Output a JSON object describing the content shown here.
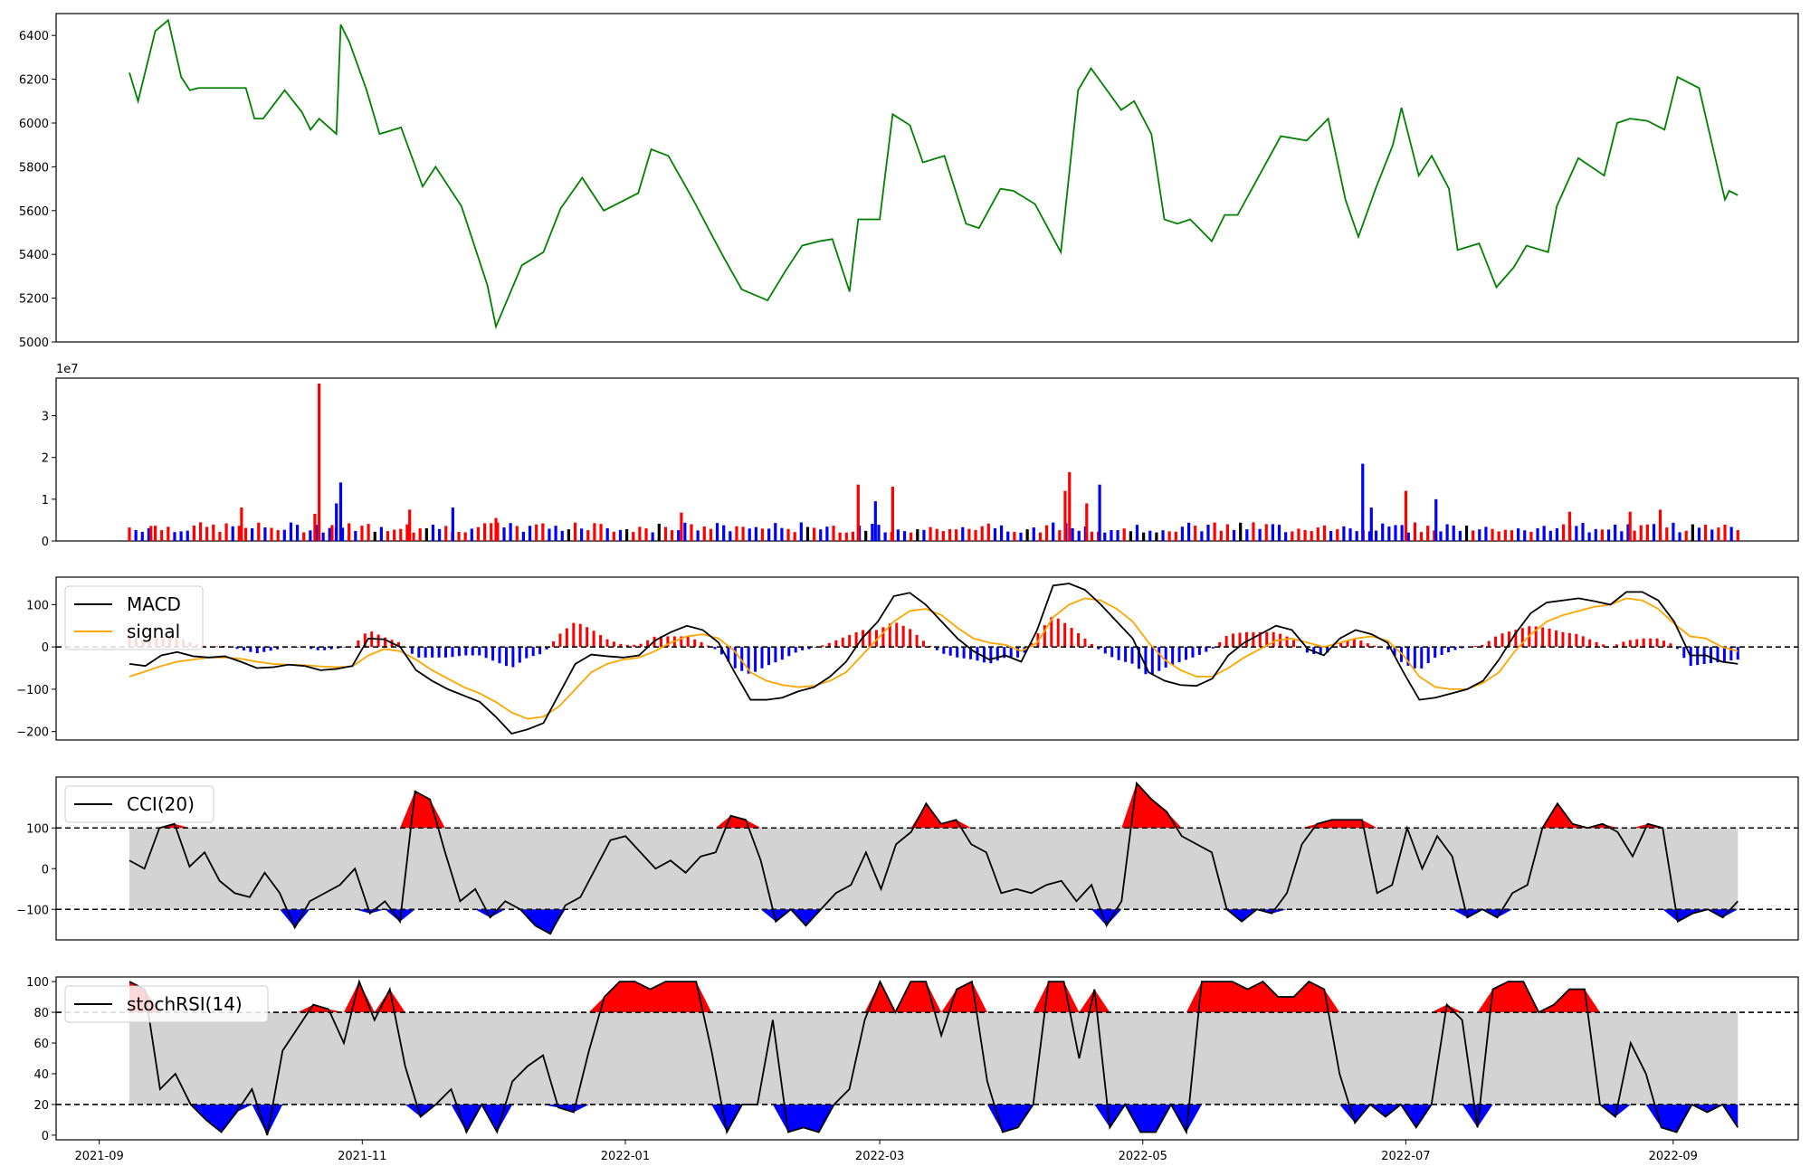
{
  "chart_data": [
    {
      "type": "line",
      "name": "price",
      "color": "#008000",
      "xlim": [
        "2021-08-22",
        "2022-09-30"
      ],
      "ylim": [
        5000,
        6500
      ],
      "yticks": [
        5000,
        5200,
        5400,
        5600,
        5800,
        6000,
        6200,
        6400
      ],
      "ytick_labels": [
        "5000",
        "5200",
        "5400",
        "5600",
        "5800",
        "6000",
        "6200",
        "6400"
      ],
      "x": [
        "2021-09-08",
        "2021-09-10",
        "2021-09-14",
        "2021-09-17",
        "2021-09-20",
        "2021-09-22",
        "2021-09-24",
        "2021-10-05",
        "2021-10-07",
        "2021-10-09",
        "2021-10-14",
        "2021-10-18",
        "2021-10-20",
        "2021-10-22",
        "2021-10-26",
        "2021-10-27",
        "2021-10-29",
        "2021-11-02",
        "2021-11-05",
        "2021-11-10",
        "2021-11-15",
        "2021-11-18",
        "2021-11-24",
        "2021-11-30",
        "2021-12-02",
        "2021-12-08",
        "2021-12-13",
        "2021-12-17",
        "2021-12-22",
        "2021-12-27",
        "2022-01-04",
        "2022-01-07",
        "2022-01-11",
        "2022-01-17",
        "2022-01-21",
        "2022-01-24",
        "2022-01-28",
        "2022-02-03",
        "2022-02-07",
        "2022-02-11",
        "2022-02-15",
        "2022-02-18",
        "2022-02-22",
        "2022-02-24",
        "2022-03-01",
        "2022-03-04",
        "2022-03-08",
        "2022-03-11",
        "2022-03-16",
        "2022-03-21",
        "2022-03-24",
        "2022-03-29",
        "2022-04-01",
        "2022-04-06",
        "2022-04-12",
        "2022-04-16",
        "2022-04-19",
        "2022-04-26",
        "2022-04-29",
        "2022-05-03",
        "2022-05-06",
        "2022-05-09",
        "2022-05-12",
        "2022-05-17",
        "2022-05-20",
        "2022-05-23",
        "2022-05-28",
        "2022-06-02",
        "2022-06-08",
        "2022-06-13",
        "2022-06-17",
        "2022-06-20",
        "2022-06-24",
        "2022-06-28",
        "2022-06-30",
        "2022-07-04",
        "2022-07-07",
        "2022-07-11",
        "2022-07-13",
        "2022-07-18",
        "2022-07-22",
        "2022-07-26",
        "2022-07-29",
        "2022-08-03",
        "2022-08-05",
        "2022-08-10",
        "2022-08-16",
        "2022-08-19",
        "2022-08-22",
        "2022-08-26",
        "2022-08-30",
        "2022-09-02",
        "2022-09-07",
        "2022-09-13",
        "2022-09-14",
        "2022-09-16"
      ],
      "y": [
        6230,
        6100,
        6420,
        6470,
        6210,
        6150,
        6160,
        6160,
        6020,
        6020,
        6150,
        6050,
        5970,
        6020,
        5950,
        6450,
        6370,
        6150,
        5950,
        5980,
        5710,
        5800,
        5620,
        5260,
        5070,
        5350,
        5410,
        5610,
        5750,
        5600,
        5680,
        5880,
        5850,
        5640,
        5490,
        5380,
        5240,
        5190,
        5320,
        5440,
        5460,
        5470,
        5230,
        5560,
        5560,
        6040,
        5990,
        5820,
        5850,
        5540,
        5520,
        5700,
        5690,
        5630,
        5410,
        6150,
        6250,
        6060,
        6100,
        5950,
        5560,
        5540,
        5560,
        5460,
        5580,
        5580,
        5760,
        5940,
        5920,
        6020,
        5650,
        5480,
        5700,
        5900,
        6070,
        5760,
        5850,
        5700,
        5420,
        5450,
        5250,
        5340,
        5440,
        5410,
        5620,
        5840,
        5760,
        6000,
        6020,
        6010,
        5970,
        6210,
        6160,
        5650,
        5690,
        5670
      ],
      "xlabel": "",
      "ylabel": "",
      "title": ""
    },
    {
      "type": "bar",
      "name": "volume",
      "offset_label": "1e7",
      "ylim": [
        0,
        3.9
      ],
      "yticks": [
        0,
        1,
        2,
        3
      ],
      "ytick_labels": [
        "0",
        "1",
        "2",
        "3"
      ],
      "xlim": [
        "2021-08-22",
        "2022-09-30"
      ],
      "note_up": "red = up day, blue = down day, black = unchanged",
      "bars": [
        {
          "x": "2021-09-13",
          "v": 3.6,
          "c": "red"
        },
        {
          "x": "2021-10-25",
          "v": 3.8,
          "c": "red"
        },
        {
          "x": "2021-10-26",
          "v": 9.0,
          "c": "blue"
        },
        {
          "x": "2021-10-27",
          "v": 14.0,
          "c": "blue"
        },
        {
          "x": "2021-10-22",
          "v": 37.7,
          "c": "red"
        },
        {
          "x": "2021-10-04",
          "v": 8.0,
          "c": "red"
        },
        {
          "x": "2021-10-21",
          "v": 6.5,
          "c": "red"
        },
        {
          "x": "2021-11-12",
          "v": 7.5,
          "c": "red"
        },
        {
          "x": "2021-11-22",
          "v": 8.0,
          "c": "blue"
        },
        {
          "x": "2021-12-02",
          "v": 5.5,
          "c": "red"
        },
        {
          "x": "2022-01-14",
          "v": 6.8,
          "c": "red"
        },
        {
          "x": "2022-02-24",
          "v": 13.5,
          "c": "red"
        },
        {
          "x": "2022-02-28",
          "v": 9.5,
          "c": "blue"
        },
        {
          "x": "2022-03-04",
          "v": 13.0,
          "c": "red"
        },
        {
          "x": "2022-04-13",
          "v": 12.0,
          "c": "red"
        },
        {
          "x": "2022-04-14",
          "v": 16.5,
          "c": "red"
        },
        {
          "x": "2022-04-18",
          "v": 9.0,
          "c": "red"
        },
        {
          "x": "2022-04-21",
          "v": 13.5,
          "c": "blue"
        },
        {
          "x": "2022-06-21",
          "v": 18.5,
          "c": "blue"
        },
        {
          "x": "2022-06-23",
          "v": 8.0,
          "c": "blue"
        },
        {
          "x": "2022-07-01",
          "v": 12.0,
          "c": "red"
        },
        {
          "x": "2022-07-08",
          "v": 10.0,
          "c": "blue"
        },
        {
          "x": "2022-08-08",
          "v": 7.0,
          "c": "red"
        },
        {
          "x": "2022-08-22",
          "v": 7.0,
          "c": "red"
        },
        {
          "x": "2022-08-29",
          "v": 7.5,
          "c": "red"
        }
      ],
      "base_level": 3.5,
      "xlabel": "",
      "ylabel": "",
      "title": ""
    },
    {
      "type": "line",
      "name": "macd",
      "ylim": [
        -220,
        165
      ],
      "yticks": [
        -200,
        -100,
        0,
        100
      ],
      "ytick_labels": [
        "−200",
        "−100",
        "0",
        "100"
      ],
      "xlim": [
        "2021-08-22",
        "2022-09-30"
      ],
      "legend": [
        "MACD",
        "signal"
      ],
      "legend_position": "upper left",
      "series": [
        {
          "name": "MACD",
          "color": "#000000",
          "y": [
            -40,
            -45,
            -20,
            -12,
            -22,
            -25,
            -22,
            -35,
            -50,
            -48,
            -42,
            -45,
            -55,
            -52,
            -45,
            20,
            18,
            0,
            -55,
            -80,
            -100,
            -115,
            -130,
            -165,
            -205,
            -195,
            -180,
            -110,
            -40,
            -18,
            -22,
            -25,
            -20,
            15,
            35,
            50,
            40,
            10,
            -60,
            -125,
            -125,
            -120,
            -105,
            -95,
            -70,
            -35,
            20,
            60,
            120,
            128,
            100,
            60,
            20,
            -10,
            -30,
            -20,
            -35,
            40,
            145,
            150,
            135,
            100,
            60,
            20,
            -60,
            -80,
            -90,
            -92,
            -75,
            -20,
            10,
            30,
            50,
            40,
            -5,
            -20,
            20,
            40,
            30,
            10,
            -60,
            -125,
            -120,
            -110,
            -100,
            -80,
            -30,
            30,
            80,
            105,
            110,
            115,
            108,
            100,
            130,
            130,
            110,
            60,
            -20,
            -20,
            -35,
            -40
          ]
        },
        {
          "name": "signal",
          "color": "#ffa500",
          "y": [
            -70,
            -58,
            -45,
            -35,
            -30,
            -25,
            -25,
            -28,
            -35,
            -40,
            -42,
            -43,
            -46,
            -48,
            -46,
            -20,
            -5,
            -10,
            -30,
            -55,
            -75,
            -95,
            -110,
            -130,
            -155,
            -170,
            -165,
            -140,
            -100,
            -60,
            -40,
            -30,
            -25,
            -10,
            10,
            25,
            30,
            20,
            -10,
            -60,
            -80,
            -90,
            -95,
            -92,
            -80,
            -60,
            -20,
            20,
            60,
            85,
            90,
            75,
            45,
            20,
            10,
            5,
            -10,
            10,
            70,
            100,
            115,
            110,
            90,
            60,
            10,
            -30,
            -55,
            -70,
            -70,
            -50,
            -25,
            -5,
            15,
            20,
            10,
            0,
            10,
            20,
            25,
            15,
            -20,
            -70,
            -95,
            -100,
            -100,
            -85,
            -60,
            -10,
            30,
            60,
            75,
            85,
            95,
            100,
            115,
            110,
            90,
            55,
            25,
            20,
            0,
            -10
          ]
        }
      ],
      "dashed_zero": true,
      "xlabel": "",
      "ylabel": "",
      "title": ""
    },
    {
      "type": "line",
      "name": "cci",
      "ylim": [
        -175,
        225
      ],
      "yticks": [
        -100,
        0,
        100
      ],
      "ytick_labels": [
        "−100",
        "0",
        "100"
      ],
      "xlim": [
        "2021-08-22",
        "2022-09-30"
      ],
      "legend": [
        "CCI(20)"
      ],
      "legend_position": "upper left",
      "thresholds": [
        100,
        -100
      ],
      "fill_colors": {
        "band": "#d3d3d3",
        "above": "#ff0000",
        "below": "#0000ff"
      },
      "y": [
        20,
        0,
        100,
        110,
        5,
        40,
        -30,
        -60,
        -70,
        -10,
        -60,
        -145,
        -80,
        -60,
        -40,
        0,
        -110,
        -80,
        -130,
        190,
        170,
        40,
        -80,
        -50,
        -120,
        -80,
        -100,
        -140,
        -160,
        -90,
        -70,
        0,
        70,
        80,
        40,
        0,
        20,
        -10,
        30,
        40,
        130,
        120,
        20,
        -130,
        -100,
        -140,
        -100,
        -60,
        -40,
        40,
        -50,
        60,
        90,
        160,
        110,
        120,
        60,
        40,
        -60,
        -50,
        -60,
        -40,
        -30,
        -80,
        -40,
        -140,
        -80,
        210,
        170,
        140,
        80,
        60,
        40,
        -100,
        -130,
        -100,
        -110,
        -60,
        60,
        110,
        120,
        120,
        120,
        -60,
        -40,
        100,
        0,
        80,
        30,
        -120,
        -100,
        -120,
        -60,
        -40,
        100,
        160,
        110,
        100,
        110,
        90,
        30,
        110,
        100,
        -130,
        -110,
        -100,
        -120,
        -80
      ],
      "xlabel": "",
      "ylabel": "",
      "title": ""
    },
    {
      "type": "line",
      "name": "stochrsi",
      "ylim": [
        -3,
        103
      ],
      "yticks": [
        0,
        20,
        40,
        60,
        80,
        100
      ],
      "ytick_labels": [
        "0",
        "20",
        "40",
        "60",
        "80",
        "100"
      ],
      "xlim": [
        "2021-08-22",
        "2022-09-30"
      ],
      "xticks": [
        "2021-09-01",
        "2021-11-01",
        "2022-01-01",
        "2022-03-01",
        "2022-05-01",
        "2022-07-01",
        "2022-09-01"
      ],
      "xtick_labels": [
        "2021-09",
        "2021-11",
        "2022-01",
        "2022-03",
        "2022-05",
        "2022-07",
        "2022-09"
      ],
      "legend": [
        "stochRSI(14)"
      ],
      "legend_position": "upper left",
      "thresholds": [
        80,
        20
      ],
      "fill_colors": {
        "band": "#d3d3d3",
        "above": "#ff0000",
        "below": "#0000ff"
      },
      "y": [
        100,
        95,
        30,
        40,
        20,
        10,
        2,
        15,
        30,
        0,
        55,
        70,
        85,
        82,
        60,
        100,
        75,
        95,
        45,
        12,
        20,
        30,
        2,
        20,
        2,
        35,
        45,
        52,
        18,
        15,
        55,
        90,
        100,
        100,
        95,
        100,
        100,
        100,
        55,
        2,
        20,
        20,
        75,
        2,
        5,
        2,
        20,
        30,
        75,
        100,
        80,
        100,
        100,
        65,
        95,
        100,
        35,
        2,
        5,
        20,
        100,
        100,
        50,
        95,
        5,
        20,
        2,
        2,
        20,
        2,
        100,
        100,
        100,
        95,
        100,
        90,
        90,
        100,
        95,
        40,
        8,
        20,
        12,
        20,
        5,
        20,
        85,
        75,
        5,
        95,
        100,
        100,
        80,
        85,
        95,
        95,
        20,
        12,
        60,
        40,
        5,
        2,
        20,
        15,
        20,
        5
      ],
      "xlabel": "",
      "ylabel": "",
      "title": ""
    }
  ]
}
